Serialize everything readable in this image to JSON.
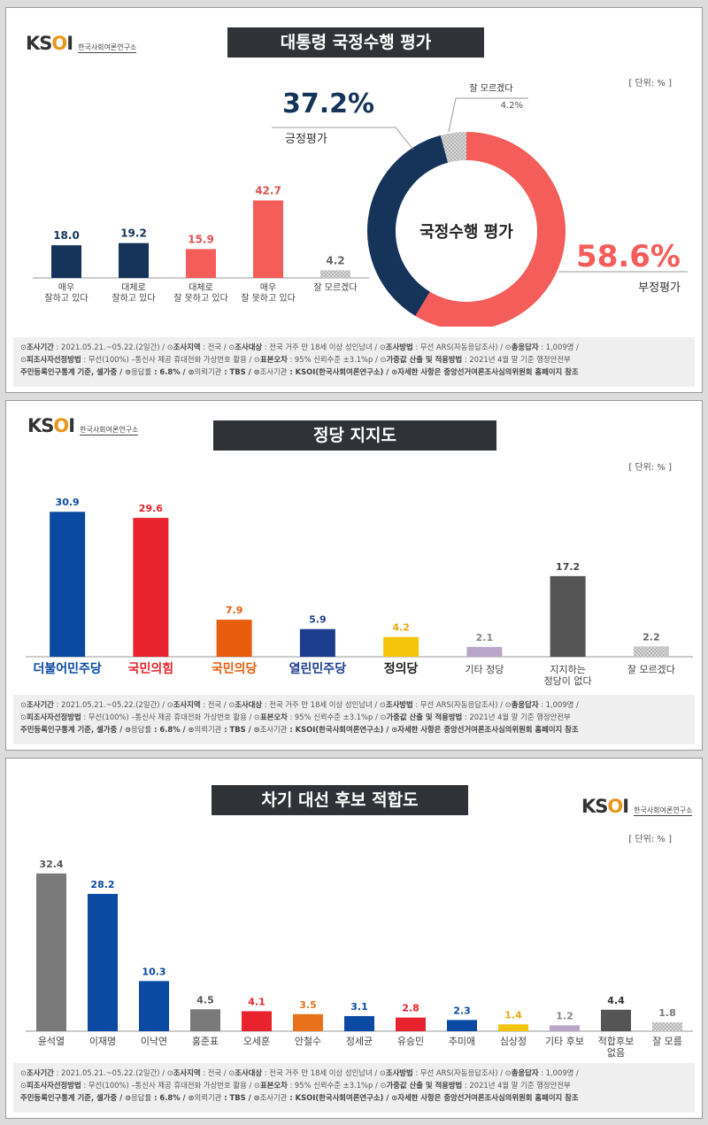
{
  "brand": {
    "logo_text": "KSOI",
    "logo_sub": "한국사회여론연구소"
  },
  "unit": "[ 단위: % ]",
  "footer": {
    "panel1_lines": [
      [
        "⊙",
        "조사기간",
        " : 2021.05.21.~05.22.(2일간)  / ⊙",
        "조사지역",
        " : 전국  / ⊙",
        "조사대상",
        " : 전국 거주 만 18세 이상 성인남녀  / ⊙",
        "조사방법",
        " : 무선 ARS(자동응답조사)  / ⊙",
        "총응답자",
        " : 1,009명 /"
      ],
      [
        "⊙",
        "피조사자선정방법",
        " : 무선(100%) –통신사 제공 휴대전화 가상번호 활용  / ⊙",
        "표본오차",
        " : 95% 신뢰수준 ±3.1%p / ⊙",
        "가중값 산출 및 적용방법",
        " : 2021년 4월 말 기준 행정안전부"
      ],
      [
        "",
        "주민등록인구통계 기준, 셀가중 / ⊙",
        "응답률",
        " : 6.8% / ⊙",
        "의뢰기관",
        " : TBS  / ⊙",
        "조사기관",
        " : KSOI(한국사회여론연구소)  / ⊙자세한 사항은 중앙선거여론조사심의위원회 홈페이지 참조"
      ]
    ]
  },
  "charts": [
    {
      "title": "대통령 국정수행 평가",
      "chart_data": {
        "type": "bar",
        "categories": [
          "매우\n잘하고 있다",
          "대체로\n잘하고 있다",
          "대체로\n잘 못하고 있다",
          "매우\n잘 못하고 있다",
          "잘 모르겠다"
        ],
        "values": [
          18.0,
          19.2,
          15.9,
          42.7,
          4.2
        ],
        "labels": [
          "18.0",
          "19.2",
          "15.9",
          "42.7",
          "4.2"
        ],
        "colors": [
          "#16335a",
          "#16335a",
          "#f45d5a",
          "#f45d5a",
          "#c8c8c8"
        ],
        "label_colors": [
          "#16335a",
          "#16335a",
          "#e0504e",
          "#e0504e",
          "#666666"
        ]
      },
      "donut": {
        "type": "pie",
        "center_label": "국정수행 평가",
        "slices": [
          {
            "name": "긍정평가",
            "value": 37.2,
            "label": "37.2%",
            "color": "#16335a"
          },
          {
            "name": "잘 모르겠다",
            "value": 4.2,
            "label": "4.2%",
            "color": "#c8c8c8"
          },
          {
            "name": "부정평가",
            "value": 58.6,
            "label": "58.6%",
            "color": "#f45d5a"
          }
        ]
      }
    },
    {
      "title": "정당 지지도",
      "chart_data": {
        "type": "bar",
        "categories": [
          "더불어민주당",
          "국민의힘",
          "국민의당",
          "열린민주당",
          "정의당",
          "기타 정당",
          "지지하는\n정당이 없다",
          "잘 모르겠다"
        ],
        "values": [
          30.9,
          29.6,
          7.9,
          5.9,
          4.2,
          2.1,
          17.2,
          2.2
        ],
        "labels": [
          "30.9",
          "29.6",
          "7.9",
          "5.9",
          "4.2",
          "2.1",
          "17.2",
          "2.2"
        ],
        "colors": [
          "#0a4aa3",
          "#e8232d",
          "#e85c0d",
          "#1d3e8f",
          "#f5c50c",
          "#b9a6c9",
          "#555555",
          "#d0d0d0"
        ],
        "label_colors": [
          "#0a4aa3",
          "#e8232d",
          "#e85c0d",
          "#1d3e8f",
          "#e8a80c",
          "#888888",
          "#444444",
          "#666666"
        ],
        "category_colors": [
          "#0a4aa3",
          "#e8232d",
          "#e85c0d",
          "#1d3e8f",
          "#222222",
          "#444444",
          "#444444",
          "#444444"
        ]
      }
    },
    {
      "title": "차기 대선 후보 적합도",
      "chart_data": {
        "type": "bar",
        "categories": [
          "윤석열",
          "이재명",
          "이낙연",
          "홍준표",
          "오세훈",
          "안철수",
          "정세균",
          "유승민",
          "추미애",
          "심상정",
          "기타 후보",
          "적합후보\n없음",
          "잘 모름"
        ],
        "values": [
          32.4,
          28.2,
          10.3,
          4.5,
          4.1,
          3.5,
          3.1,
          2.8,
          2.3,
          1.4,
          1.2,
          4.4,
          1.8
        ],
        "labels": [
          "32.4",
          "28.2",
          "10.3",
          "4.5",
          "4.1",
          "3.5",
          "3.1",
          "2.8",
          "2.3",
          "1.4",
          "1.2",
          "4.4",
          "1.8"
        ],
        "colors": [
          "#7a7a7a",
          "#0a4aa3",
          "#0a4aa3",
          "#7a7a7a",
          "#e8232d",
          "#e8721c",
          "#0a4aa3",
          "#e8232d",
          "#0a4aa3",
          "#f5c50c",
          "#b9a6c9",
          "#555555",
          "#d0d0d0"
        ],
        "label_colors": [
          "#555555",
          "#0a4aa3",
          "#0a4aa3",
          "#555555",
          "#e8232d",
          "#e8721c",
          "#0a4aa3",
          "#e8232d",
          "#0a4aa3",
          "#e8a80c",
          "#888888",
          "#333333",
          "#777777"
        ]
      }
    }
  ]
}
